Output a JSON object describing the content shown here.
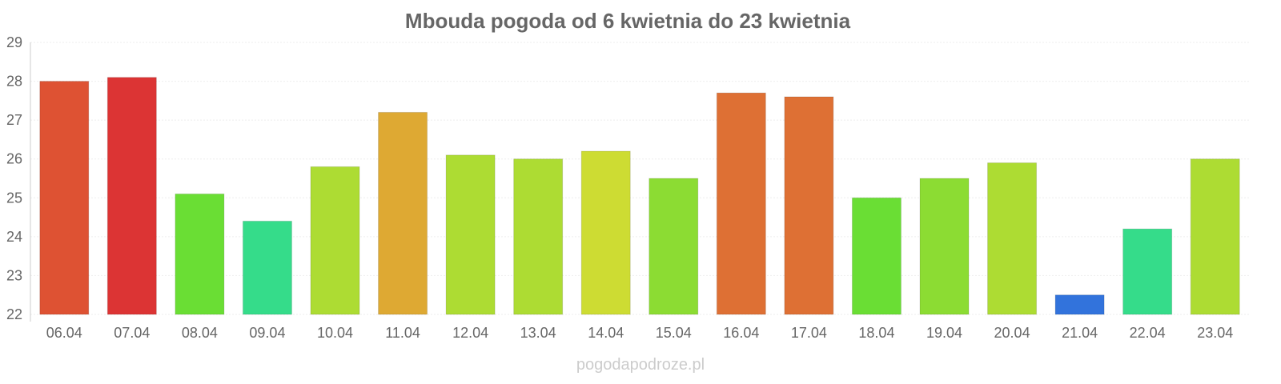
{
  "chart_data": {
    "type": "bar",
    "title": "Mbouda pogoda od 6 kwietnia do 23 kwietnia",
    "xlabel": "",
    "ylabel": "",
    "ylim": [
      22,
      29
    ],
    "yticks": [
      22,
      23,
      24,
      25,
      26,
      27,
      28,
      29
    ],
    "grid": true,
    "categories": [
      "06.04",
      "07.04",
      "08.04",
      "09.04",
      "10.04",
      "11.04",
      "12.04",
      "13.04",
      "14.04",
      "15.04",
      "16.04",
      "17.04",
      "18.04",
      "19.04",
      "20.04",
      "21.04",
      "22.04",
      "23.04"
    ],
    "values": [
      28.0,
      28.1,
      25.1,
      24.4,
      25.8,
      27.2,
      26.1,
      26.0,
      26.2,
      25.5,
      27.7,
      27.6,
      25.0,
      25.5,
      25.9,
      22.5,
      24.2,
      26.0
    ],
    "colors": [
      "#de5233",
      "#dc3434",
      "#6ade34",
      "#35dc8a",
      "#addc33",
      "#dea933",
      "#addc33",
      "#addc33",
      "#cddc33",
      "#8cdc33",
      "#de7034",
      "#de7034",
      "#6ade34",
      "#8cdc33",
      "#addc33",
      "#3273dc",
      "#35dc8a",
      "#addc33"
    ]
  },
  "credit": "pogodapodroze.pl"
}
